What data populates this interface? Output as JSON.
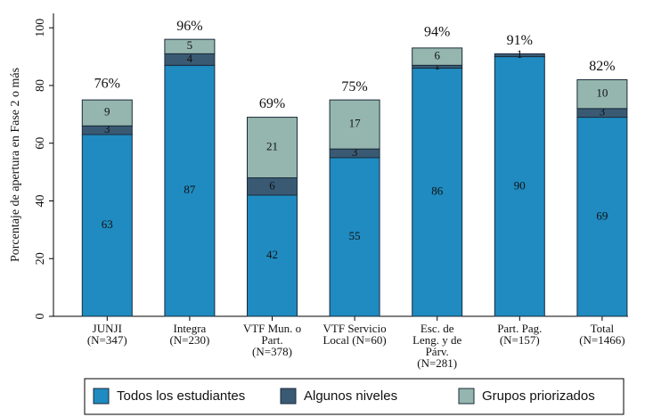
{
  "chart_data": {
    "type": "stacked_bar",
    "y_label": "Porcentaje de apertura en Fase 2 o más",
    "categories": [
      [
        "JUNJI",
        "(N=347)"
      ],
      [
        "Integra",
        "(N=230)"
      ],
      [
        "VTF Mun. o",
        "Part.",
        "(N=378)"
      ],
      [
        "VTF Servicio",
        "Local (N=60)"
      ],
      [
        "Esc. de",
        "Leng. y de",
        "Párv.",
        "(N=281)"
      ],
      [
        "Part. Pag.",
        "(N=157)"
      ],
      [
        "Total",
        "(N=1466)"
      ]
    ],
    "series": [
      {
        "name": "Todos los estudiantes",
        "color": "#1f8bc0",
        "values": [
          63,
          87,
          42,
          55,
          86,
          90,
          69
        ]
      },
      {
        "name": "Algunos niveles",
        "color": "#3a5a74",
        "values": [
          3,
          4,
          6,
          3,
          1,
          1,
          3
        ]
      },
      {
        "name": "Grupos priorizados",
        "color": "#95b6ae",
        "values": [
          9,
          5,
          21,
          17,
          6,
          null,
          10
        ]
      }
    ],
    "totals": {
      "values": [
        76,
        96,
        69,
        75,
        94,
        91,
        82
      ],
      "value_labels": [
        "76%",
        "96%",
        "69%",
        "75%",
        "94%",
        "91%",
        "82%"
      ]
    },
    "ylim": [
      0,
      105
    ],
    "yticks": [
      0,
      20,
      40,
      60,
      80,
      100
    ]
  }
}
